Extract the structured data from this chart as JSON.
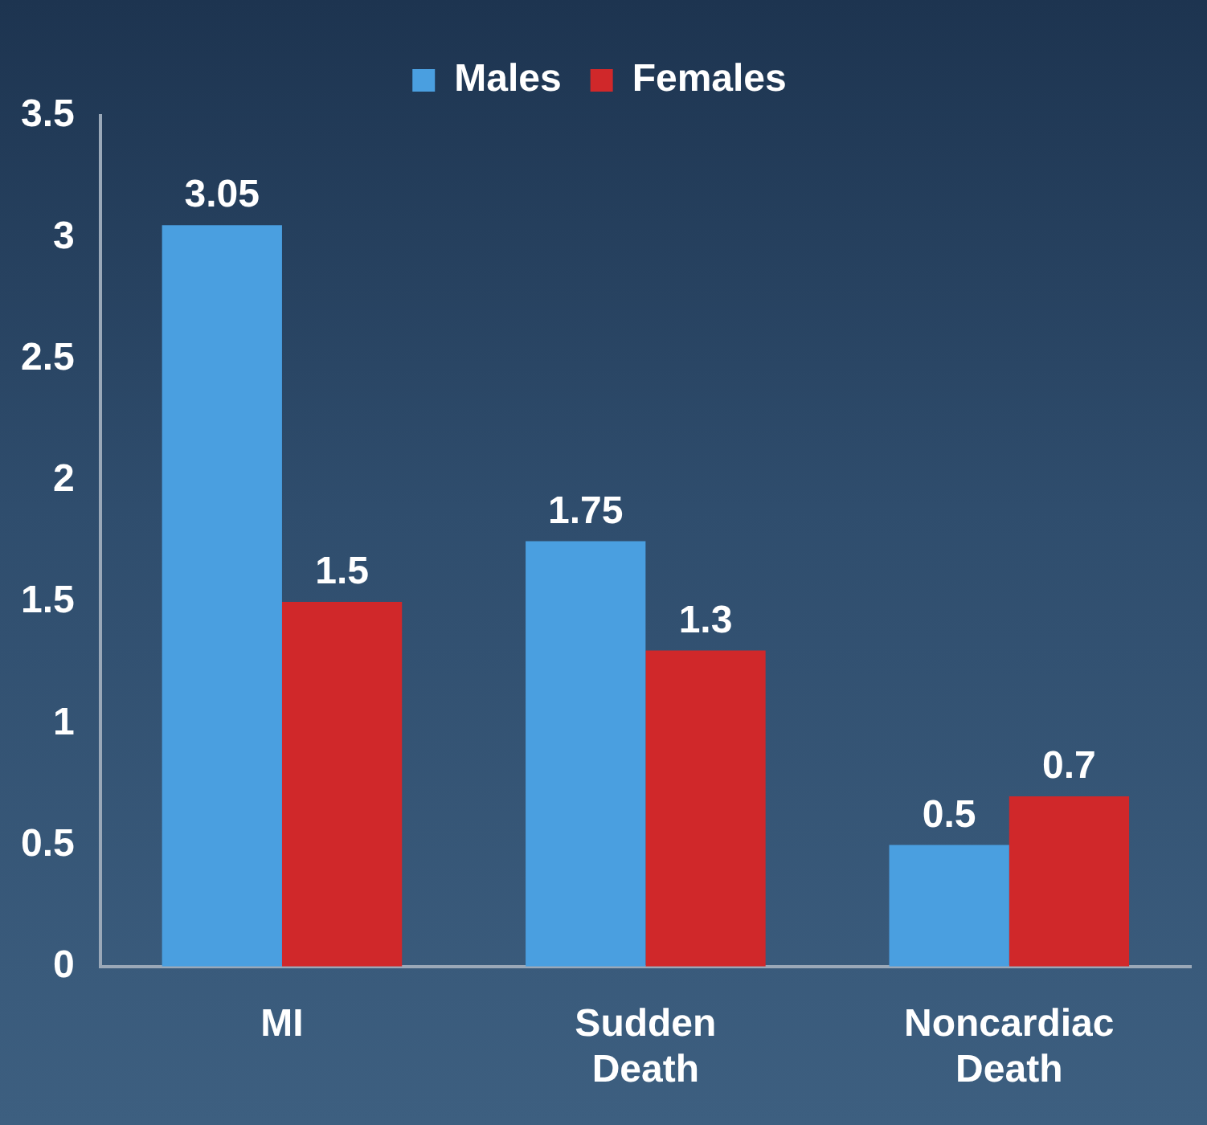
{
  "chart_data": {
    "type": "bar",
    "categories": [
      "MI",
      "Sudden Death",
      "Noncardiac Death"
    ],
    "series": [
      {
        "name": "Males",
        "color": "#4a9fe0",
        "values": [
          3.05,
          1.75,
          0.5
        ]
      },
      {
        "name": "Females",
        "color": "#d0282a",
        "values": [
          1.5,
          1.3,
          0.7
        ]
      }
    ],
    "ylim": [
      0,
      3.5
    ],
    "yticks": [
      0,
      0.5,
      1,
      1.5,
      2,
      2.5,
      3,
      3.5
    ],
    "grid": false,
    "legend": "top",
    "data_labels": true
  }
}
